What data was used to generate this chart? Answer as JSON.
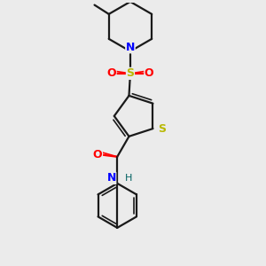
{
  "bg_color": "#ebebeb",
  "bond_color": "#1a1a1a",
  "S_color": "#b8b800",
  "N_color": "#0000ff",
  "O_color": "#ff0000",
  "H_color": "#006060",
  "figsize": [
    3.0,
    3.0
  ],
  "dpi": 100,
  "xlim": [
    0,
    10
  ],
  "ylim": [
    0,
    10
  ]
}
